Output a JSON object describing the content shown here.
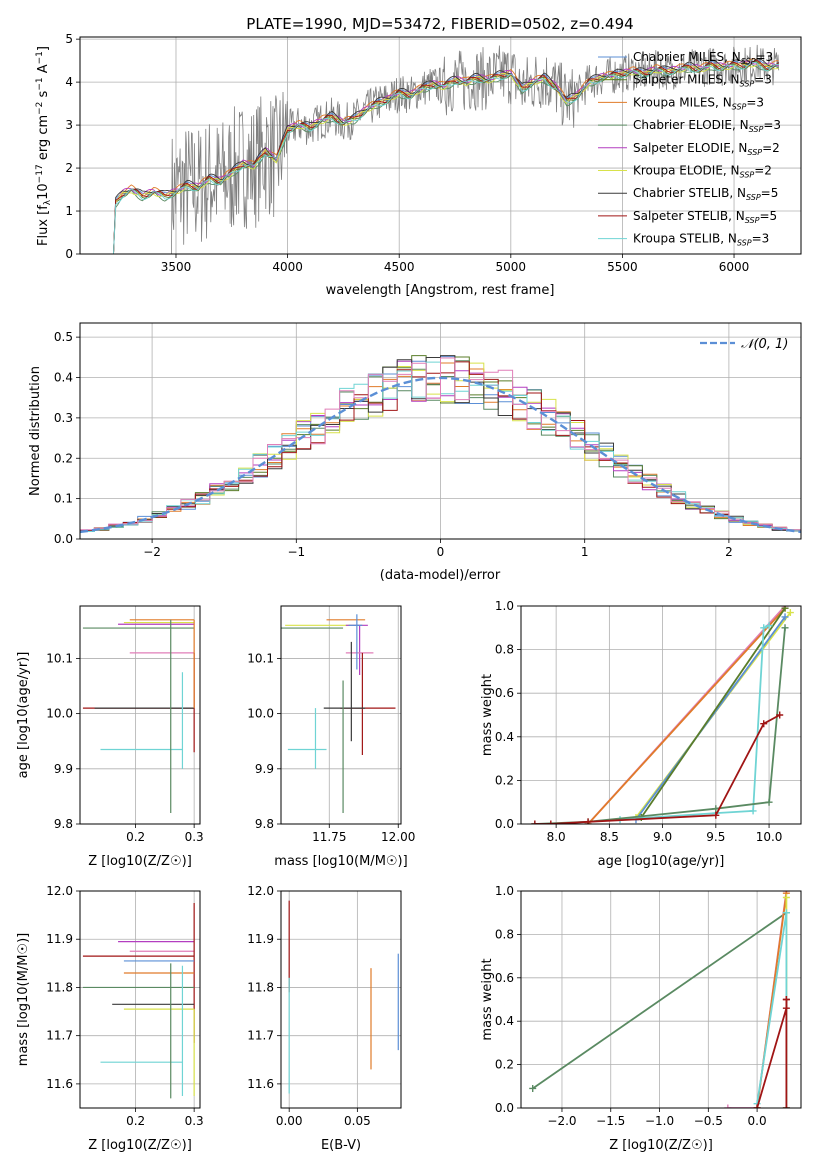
{
  "colors": {
    "Chabrier MILES": "#5b8fd6",
    "Salpeter MILES": "#5a7d2a",
    "Kroupa MILES": "#e07b2a",
    "Chabrier ELODIE": "#5a8a62",
    "Salpeter ELODIE": "#b33ec0",
    "Kroupa ELODIE": "#d8e24a",
    "Chabrier STELIB": "#3a3a3a",
    "Salpeter STELIB": "#a01515",
    "Kroupa STELIB": "#6fd4d4",
    "pink": "#e07fb8",
    "normal": "#5b8fd6"
  },
  "chart_data": [
    {
      "id": "spectrum",
      "type": "line",
      "title": "PLATE=1990, MJD=53472, FIBERID=0502, z=0.494",
      "xlabel": "wavelength [Angstrom, rest frame]",
      "ylabel": "Flux [f",
      "ylabel_sub": "λ",
      "ylabel_rest": "10",
      "ylabel_sup1": "−17",
      "ylabel_mid": " erg cm",
      "ylabel_sup2": "−2",
      "ylabel_mid2": " s",
      "ylabel_sup3": "−1",
      "ylabel_mid3": " A",
      "ylabel_sup4": "−1",
      "ylabel_end": "]",
      "xlim": [
        3070,
        6300
      ],
      "ylim": [
        0,
        5.05
      ],
      "xticks": [
        3500,
        4000,
        4500,
        5000,
        5500,
        6000
      ],
      "yticks": [
        0,
        1,
        2,
        3,
        4,
        5
      ],
      "legend": [
        {
          "name": "Chabrier MILES",
          "nssp": "3"
        },
        {
          "name": "Salpeter MILES",
          "nssp": "3"
        },
        {
          "name": "Kroupa MILES",
          "nssp": "3"
        },
        {
          "name": "Chabrier ELODIE",
          "nssp": "3"
        },
        {
          "name": "Salpeter ELODIE",
          "nssp": "2"
        },
        {
          "name": "Kroupa ELODIE",
          "nssp": "2"
        },
        {
          "name": "Chabrier STELIB",
          "nssp": "5"
        },
        {
          "name": "Salpeter STELIB",
          "nssp": "5"
        },
        {
          "name": "Kroupa STELIB",
          "nssp": "3"
        }
      ],
      "nssp_label": "N",
      "nssp_sub": "SSP",
      "model_x": [
        3200,
        3230,
        3260,
        3300,
        3350,
        3400,
        3450,
        3500,
        3550,
        3600,
        3650,
        3700,
        3750,
        3800,
        3850,
        3900,
        3950,
        4000,
        4050,
        4100,
        4150,
        4200,
        4250,
        4300,
        4350,
        4400,
        4450,
        4500,
        4550,
        4600,
        4650,
        4700,
        4750,
        4800,
        4850,
        4900,
        4950,
        5000,
        5050,
        5100,
        5150,
        5200,
        5250,
        5300,
        5350,
        5400,
        5450,
        5500,
        5550,
        5600,
        5650,
        5700,
        5750,
        5800,
        5850,
        5900,
        5950,
        6000,
        6050,
        6100,
        6150,
        6200
      ],
      "model_y": [
        0,
        1.2,
        1.4,
        1.5,
        1.35,
        1.45,
        1.35,
        1.45,
        1.6,
        1.55,
        1.75,
        1.7,
        1.9,
        2.1,
        2.05,
        2.4,
        2.2,
        2.9,
        3.0,
        2.95,
        3.1,
        3.2,
        3.05,
        3.15,
        3.35,
        3.5,
        3.6,
        3.75,
        3.7,
        3.85,
        3.95,
        3.9,
        4.05,
        4.0,
        4.1,
        4.05,
        4.15,
        4.2,
        3.85,
        4.0,
        4.1,
        3.9,
        3.55,
        3.7,
        4.0,
        4.1,
        4.15,
        4.2,
        4.25,
        4.2,
        4.3,
        4.25,
        4.3,
        4.35,
        4.3,
        4.4,
        4.35,
        4.4,
        4.4,
        4.45,
        4.35,
        4.4
      ]
    },
    {
      "id": "residuals",
      "type": "histogram",
      "xlabel": "(data-model)/error",
      "ylabel": "Normed distribution",
      "xlim": [
        -2.5,
        2.5
      ],
      "ylim": [
        0,
        0.535
      ],
      "xticks": [
        -2,
        -1,
        0,
        1,
        2
      ],
      "yticks": [
        0.0,
        0.1,
        0.2,
        0.3,
        0.4,
        0.5
      ],
      "legend_label": "𝒩(0, 1)",
      "bin_width": 0.1
    },
    {
      "id": "age-vs-Z",
      "type": "errorbar",
      "xlabel": "Z [log10(Z/Z☉)]",
      "ylabel": "age  [log10(age/yr)]",
      "xlim": [
        0.105,
        0.31
      ],
      "ylim": [
        9.8,
        10.195
      ],
      "xticks": [
        0.2,
        0.3
      ],
      "yticks": [
        9.8,
        9.9,
        10.0,
        10.1
      ],
      "bars": [
        {
          "color": "Chabrier ELODIE",
          "x": 0.3,
          "y": 10.155,
          "xerr": [
            0.19,
            0
          ],
          "yerr": [
            0,
            0
          ]
        },
        {
          "color": "Salpeter ELODIE",
          "x": 0.3,
          "y": 10.162,
          "xerr": [
            0.13,
            0
          ],
          "yerr": [
            0,
            0
          ]
        },
        {
          "color": "Kroupa MILES",
          "x": 0.3,
          "y": 10.17,
          "xerr": [
            0.11,
            0
          ],
          "yerr": [
            0,
            0
          ]
        },
        {
          "color": "Kroupa ELODIE",
          "x": 0.3,
          "y": 10.165,
          "xerr": [
            0.12,
            0
          ],
          "yerr": [
            0,
            0
          ]
        },
        {
          "color": "pink",
          "x": 0.3,
          "y": 10.11,
          "xerr": [
            0.11,
            0
          ],
          "yerr": [
            0,
            0
          ]
        },
        {
          "color": "Salpeter STELIB",
          "x": 0.3,
          "y": 10.01,
          "xerr": [
            0.19,
            0
          ],
          "yerr": [
            0.08,
            0.1
          ]
        },
        {
          "color": "Chabrier STELIB",
          "x": 0.3,
          "y": 10.01,
          "xerr": [
            0.17,
            0
          ],
          "yerr": [
            0,
            0
          ]
        },
        {
          "color": "Kroupa STELIB",
          "x": 0.28,
          "y": 9.935,
          "xerr": [
            0.14,
            0
          ],
          "yerr": [
            0.035,
            0.14
          ]
        },
        {
          "color": "Chabrier ELODIE",
          "x": 0.26,
          "y": 10.15,
          "xerr": [
            0,
            0
          ],
          "yerr": [
            0.33,
            0.02
          ]
        },
        {
          "color": "Kroupa MILES",
          "x": 0.3,
          "y": 10.16,
          "xerr": [
            0,
            0
          ],
          "yerr": [
            0.15,
            0.01
          ]
        }
      ]
    },
    {
      "id": "age-vs-mass",
      "type": "errorbar",
      "xlabel": "mass [log10(M/M☉)]",
      "ylabel": "",
      "xlim": [
        11.575,
        12.01
      ],
      "ylim": [
        9.8,
        10.195
      ],
      "xticks": [
        11.75,
        12.0
      ],
      "yticks": [
        9.8,
        9.9,
        10.0,
        10.1
      ],
      "bars": [
        {
          "color": "Chabrier ELODIE",
          "x": 11.68,
          "y": 10.155,
          "xerr": [
            0.12,
            0.12
          ],
          "yerr": [
            0,
            0
          ]
        },
        {
          "color": "Kroupa ELODIE",
          "x": 11.75,
          "y": 10.16,
          "xerr": [
            0.16,
            0.12
          ],
          "yerr": [
            0,
            0
          ]
        },
        {
          "color": "Kroupa MILES",
          "x": 11.86,
          "y": 10.17,
          "xerr": [
            0.12,
            0.02
          ],
          "yerr": [
            0,
            0
          ]
        },
        {
          "color": "Salpeter ELODIE",
          "x": 11.86,
          "y": 10.16,
          "xerr": [
            0.05,
            0.03
          ],
          "yerr": [
            0.09,
            0
          ]
        },
        {
          "color": "pink",
          "x": 11.86,
          "y": 10.11,
          "xerr": [
            0.05,
            0.05
          ],
          "yerr": [
            0,
            0
          ]
        },
        {
          "color": "Chabrier MILES",
          "x": 11.85,
          "y": 10.16,
          "xerr": [
            0.03,
            0.02
          ],
          "yerr": [
            0.08,
            0.02
          ]
        },
        {
          "color": "Salpeter STELIB",
          "x": 11.87,
          "y": 10.01,
          "xerr": [
            0.08,
            0.12
          ],
          "yerr": [
            0.085,
            0.1
          ]
        },
        {
          "color": "Chabrier STELIB",
          "x": 11.83,
          "y": 10.01,
          "xerr": [
            0.1,
            0.05
          ],
          "yerr": [
            0.06,
            0.12
          ]
        },
        {
          "color": "Chabrier ELODIE",
          "x": 11.8,
          "y": 10.0,
          "xerr": [
            0,
            0
          ],
          "yerr": [
            0.18,
            0.06
          ]
        },
        {
          "color": "Kroupa STELIB",
          "x": 11.7,
          "y": 9.935,
          "xerr": [
            0.1,
            0.04
          ],
          "yerr": [
            0.035,
            0.075
          ]
        }
      ]
    },
    {
      "id": "massweight-vs-age",
      "type": "line",
      "xlabel": "age  [log10(age/yr)]",
      "ylabel": "mass weight",
      "xlim": [
        7.67,
        10.3
      ],
      "ylim": [
        0,
        1.0
      ],
      "xticks": [
        8.0,
        8.5,
        9.0,
        9.5,
        10.0
      ],
      "yticks": [
        0.0,
        0.2,
        0.4,
        0.6,
        0.8,
        1.0
      ],
      "series": [
        {
          "color": "pink",
          "x": [
            8.3,
            10.15
          ],
          "y": [
            0,
            1.0
          ]
        },
        {
          "color": "Kroupa MILES",
          "x": [
            8.3,
            10.15
          ],
          "y": [
            0,
            0.99
          ]
        },
        {
          "color": "Kroupa ELODIE",
          "x": [
            8.75,
            10.2
          ],
          "y": [
            0.03,
            0.97
          ]
        },
        {
          "color": "Chabrier MILES",
          "x": [
            8.75,
            10.15
          ],
          "y": [
            0.02,
            0.95
          ]
        },
        {
          "color": "Salpeter MILES",
          "x": [
            8.8,
            10.15
          ],
          "y": [
            0.03,
            0.99
          ]
        },
        {
          "color": "Kroupa STELIB",
          "x": [
            8.6,
            9.5,
            9.85,
            9.95,
            10.0
          ],
          "y": [
            0.02,
            0.05,
            0.06,
            0.9,
            0.91
          ]
        },
        {
          "color": "Chabrier ELODIE",
          "x": [
            7.8,
            8.3,
            9.5,
            10.0,
            10.15
          ],
          "y": [
            0,
            0.01,
            0.07,
            0.1,
            0.9
          ]
        },
        {
          "color": "Salpeter STELIB",
          "x": [
            7.8,
            7.95,
            8.3,
            9.5,
            9.95,
            10.1
          ],
          "y": [
            0,
            0,
            0.01,
            0.04,
            0.46,
            0.5
          ]
        }
      ]
    },
    {
      "id": "mass-vs-Z",
      "type": "errorbar",
      "xlabel": "Z [log10(Z/Z☉)]",
      "ylabel": "mass [log10(M/M☉)]",
      "xlim": [
        0.105,
        0.31
      ],
      "ylim": [
        11.55,
        12.0
      ],
      "xticks": [
        0.2,
        0.3
      ],
      "yticks": [
        11.6,
        11.7,
        11.8,
        11.9,
        12.0
      ],
      "bars": [
        {
          "color": "Salpeter ELODIE",
          "x": 0.3,
          "y": 11.895,
          "xerr": [
            0.13,
            0
          ],
          "yerr": [
            0,
            0
          ]
        },
        {
          "color": "pink",
          "x": 0.3,
          "y": 11.875,
          "xerr": [
            0.11,
            0
          ],
          "yerr": [
            0,
            0
          ]
        },
        {
          "color": "Salpeter STELIB",
          "x": 0.3,
          "y": 11.865,
          "xerr": [
            0.19,
            0
          ],
          "yerr": [
            0.18,
            0.11
          ]
        },
        {
          "color": "Chabrier MILES",
          "x": 0.3,
          "y": 11.855,
          "xerr": [
            0.12,
            0
          ],
          "yerr": [
            0,
            0
          ]
        },
        {
          "color": "Kroupa MILES",
          "x": 0.3,
          "y": 11.83,
          "xerr": [
            0.12,
            0
          ],
          "yerr": [
            0,
            0
          ]
        },
        {
          "color": "Chabrier ELODIE",
          "x": 0.3,
          "y": 11.8,
          "xerr": [
            0.19,
            0
          ],
          "yerr": [
            0,
            0
          ]
        },
        {
          "color": "Chabrier STELIB",
          "x": 0.3,
          "y": 11.765,
          "xerr": [
            0.14,
            0
          ],
          "yerr": [
            0,
            0
          ]
        },
        {
          "color": "Kroupa ELODIE",
          "x": 0.3,
          "y": 11.755,
          "xerr": [
            0.12,
            0
          ],
          "yerr": [
            0.18,
            0
          ]
        },
        {
          "color": "Kroupa STELIB",
          "x": 0.28,
          "y": 11.645,
          "xerr": [
            0.14,
            0
          ],
          "yerr": [
            0.07,
            0.2
          ]
        },
        {
          "color": "Chabrier ELODIE",
          "x": 0.26,
          "y": 11.8,
          "xerr": [
            0,
            0
          ],
          "yerr": [
            0.23,
            0.05
          ]
        }
      ]
    },
    {
      "id": "mass-vs-ebv",
      "type": "errorbar",
      "xlabel": "E(B-V)",
      "ylabel": "",
      "xlim": [
        -0.006,
        0.082
      ],
      "ylim": [
        11.55,
        12.0
      ],
      "xticks": [
        0.0,
        0.05
      ],
      "yticks": [
        11.6,
        11.7,
        11.8,
        11.9,
        12.0
      ],
      "bars": [
        {
          "color": "Salpeter STELIB",
          "x": 0.0,
          "y": 11.87,
          "xerr": [
            0,
            0
          ],
          "yerr": [
            0.08,
            0.11
          ]
        },
        {
          "color": "Kroupa STELIB",
          "x": 0.0,
          "y": 11.7,
          "xerr": [
            0,
            0
          ],
          "yerr": [
            0.12,
            0.12
          ]
        },
        {
          "color": "Kroupa MILES",
          "x": 0.06,
          "y": 11.735,
          "xerr": [
            0,
            0
          ],
          "yerr": [
            0.105,
            0.105
          ]
        },
        {
          "color": "Chabrier MILES",
          "x": 0.08,
          "y": 11.77,
          "xerr": [
            0,
            0
          ],
          "yerr": [
            0.1,
            0.1
          ]
        }
      ]
    },
    {
      "id": "massweight-vs-Z",
      "type": "line",
      "xlabel": "Z [log10(Z/Z☉)]",
      "ylabel": "mass weight",
      "xlim": [
        -2.42,
        0.45
      ],
      "ylim": [
        0,
        1.0
      ],
      "xticks": [
        -2.0,
        -1.5,
        -1.0,
        -0.5,
        0.0
      ],
      "yticks": [
        0.0,
        0.2,
        0.4,
        0.6,
        0.8,
        1.0
      ],
      "series": [
        {
          "color": "Chabrier ELODIE",
          "x": [
            -2.3,
            0.3
          ],
          "y": [
            0.09,
            0.9
          ]
        },
        {
          "color": "pink",
          "x": [
            -0.3,
            0.0,
            0.3
          ],
          "y": [
            0,
            0,
            1.0
          ]
        },
        {
          "color": "Kroupa MILES",
          "x": [
            0.0,
            0.3
          ],
          "y": [
            0,
            0.99
          ]
        },
        {
          "color": "Kroupa ELODIE",
          "x": [
            0.3,
            0.3
          ],
          "y": [
            0.0,
            0.97
          ]
        },
        {
          "color": "Kroupa STELIB",
          "x": [
            0.0,
            0.3,
            0.3
          ],
          "y": [
            0.02,
            0.9,
            0.0
          ]
        },
        {
          "color": "Salpeter STELIB",
          "x": [
            0.0,
            0.3,
            0.3
          ],
          "y": [
            0,
            0.46,
            0.5
          ]
        },
        {
          "color": "Salpeter STELIB",
          "x": [
            0.3,
            0.3
          ],
          "y": [
            0,
            0.5
          ]
        }
      ]
    }
  ]
}
